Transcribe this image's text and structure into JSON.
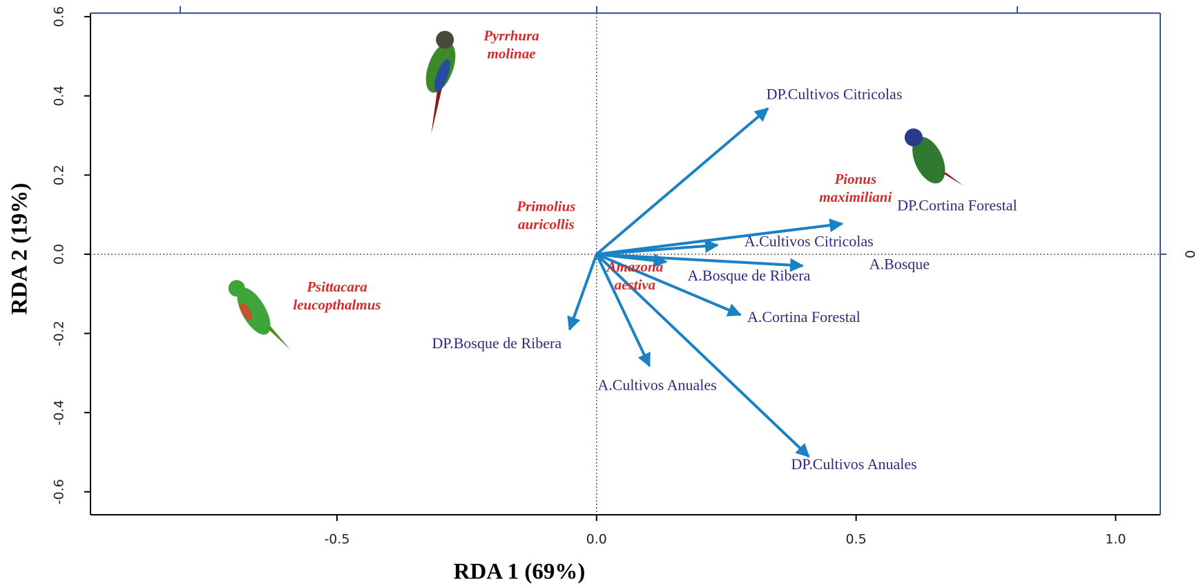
{
  "chart_data": {
    "type": "biplot",
    "x_label": "RDA 1 (69%)",
    "y_label": "RDA 2 (19%)",
    "xlim": [
      -0.975,
      1.086
    ],
    "ylim": [
      -0.658,
      0.609
    ],
    "xticks": [
      -0.5,
      {
        "value": 0,
        "label": "0.0"
      },
      0.5,
      {
        "value": 1,
        "label": "1.0"
      }
    ],
    "yticks": [
      -0.6,
      -0.4,
      -0.2,
      {
        "value": 0,
        "label": "0.0"
      },
      0.2,
      0.4,
      0.6
    ],
    "y2lim": [
      -0.658,
      0.609
    ],
    "y2ticks": [
      0
    ],
    "arrow_color": "#1a82c4",
    "arrow_label_color": "#2e2a7a",
    "species_color": "#d42a2a",
    "arrows": [
      {
        "name": "DP.Cultivos Citricolas",
        "x": 0.33,
        "y": 0.368
      },
      {
        "name": "DP.Cortina Forestal",
        "x": 0.473,
        "y": 0.077
      },
      {
        "name": "A.Cultivos Citricolas",
        "x": 0.233,
        "y": 0.023
      },
      {
        "name": "A.Bosque",
        "x": 0.397,
        "y": -0.029
      },
      {
        "name": "A.Bosque de Ribera",
        "x": 0.134,
        "y": -0.019
      },
      {
        "name": "A.Cortina Forestal",
        "x": 0.277,
        "y": -0.153
      },
      {
        "name": "A.Cultivos Anuales",
        "x": 0.102,
        "y": -0.282
      },
      {
        "name": "DP.Cultivos Anuales",
        "x": 0.409,
        "y": -0.511
      },
      {
        "name": "DP.Bosque de Ribera",
        "x": -0.052,
        "y": -0.19
      }
    ],
    "species": [
      {
        "lines": [
          "Pyrrhura",
          "molinae"
        ],
        "x": -0.164,
        "y": 0.526
      },
      {
        "lines": [
          "Primolius",
          "auricollis"
        ],
        "x": -0.097,
        "y": 0.095
      },
      {
        "lines": [
          "Pionus",
          "maximiliani"
        ],
        "x": 0.499,
        "y": 0.164
      },
      {
        "lines": [
          "Amazona",
          "aestiva"
        ],
        "x": 0.074,
        "y": -0.058
      },
      {
        "lines": [
          "Psittacara",
          "leucopthalmus"
        ],
        "x": -0.5,
        "y": -0.108
      }
    ]
  }
}
